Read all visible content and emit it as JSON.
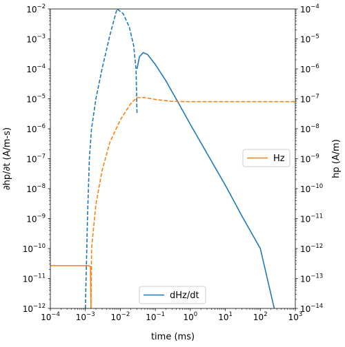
{
  "chart_data": {
    "type": "line",
    "xlabel": "time (ms)",
    "ylabel_left": "∂hp/∂t (A/m-s)",
    "ylabel_right": "hp (A/m)",
    "xscale": "log",
    "yscale_left": "log",
    "yscale_right": "log",
    "xlim": [
      0.0001,
      1000
    ],
    "ylim_left": [
      1e-12,
      0.01
    ],
    "ylim_right": [
      1e-14,
      0.0001
    ],
    "grid": false,
    "x_ticks": [
      0.0001,
      0.001,
      0.01,
      0.1,
      1,
      10,
      100,
      1000
    ],
    "y_left_ticks": [
      1e-12,
      1e-11,
      1e-10,
      1e-09,
      1e-08,
      1e-07,
      1e-06,
      1e-05,
      0.0001,
      0.001,
      0.01
    ],
    "y_right_ticks": [
      1e-14,
      1e-13,
      1e-12,
      1e-11,
      1e-10,
      1e-09,
      1e-08,
      1e-07,
      1e-06,
      1e-05,
      0.0001
    ],
    "colors": {
      "dHz/dt": "#1f77b4",
      "Hz": "#ff7f0e"
    },
    "legends": [
      {
        "label": "dHz/dt",
        "axis": "left",
        "placement": "lower center"
      },
      {
        "label": "Hz",
        "axis": "right",
        "placement": "center right"
      }
    ],
    "series": [
      {
        "name": "dHz/dt",
        "axis": "left",
        "note": "dashed segments are negative values, solid segments are positive",
        "segments": [
          {
            "style": "dashed",
            "points": [
              [
                0.001,
                1e-12
              ],
              [
                0.00115,
                1e-09
              ],
              [
                0.0013,
                1e-07
              ],
              [
                0.0015,
                1e-06
              ],
              [
                0.002,
                1e-05
              ],
              [
                0.003,
                0.0001
              ],
              [
                0.005,
                0.0013
              ],
              [
                0.008,
                0.01
              ],
              [
                0.012,
                0.007
              ],
              [
                0.018,
                0.0025
              ],
              [
                0.024,
                0.0006
              ],
              [
                0.028,
                0.0001
              ],
              [
                0.03,
                3e-06
              ]
            ]
          },
          {
            "style": "solid",
            "points": [
              [
                0.03,
                0.0001
              ],
              [
                0.035,
                0.00025
              ],
              [
                0.045,
                0.00035
              ],
              [
                0.06,
                0.0003
              ],
              [
                0.1,
                0.00014
              ],
              [
                0.2,
                4e-05
              ],
              [
                0.5,
                6e-06
              ],
              [
                1,
                1.4e-06
              ],
              [
                3,
                1.5e-07
              ],
              [
                10,
                1.3e-08
              ],
              [
                30,
                1.2e-09
              ],
              [
                100,
                1e-10
              ],
              [
                250,
                1e-12
              ]
            ]
          }
        ]
      },
      {
        "name": "Hz",
        "axis": "right",
        "note": "solid segment is positive, dashed segment is negative",
        "segments": [
          {
            "style": "solid",
            "points": [
              [
                0.0001,
                2.7e-13
              ],
              [
                0.0012,
                2.7e-13
              ],
              [
                0.0014,
                2.5e-13
              ],
              [
                0.00145,
                1e-14
              ]
            ]
          },
          {
            "style": "dashed",
            "points": [
              [
                0.00145,
                1e-14
              ],
              [
                0.0015,
                1e-12
              ],
              [
                0.002,
                3e-11
              ],
              [
                0.003,
                4e-10
              ],
              [
                0.005,
                3.5e-09
              ],
              [
                0.01,
                2e-08
              ],
              [
                0.02,
                7e-08
              ],
              [
                0.03,
                1.1e-07
              ],
              [
                0.05,
                1.1e-07
              ],
              [
                0.1,
                9.5e-08
              ],
              [
                0.3,
                8.2e-08
              ],
              [
                1,
                8e-08
              ],
              [
                1000,
                8e-08
              ]
            ]
          }
        ]
      }
    ]
  }
}
